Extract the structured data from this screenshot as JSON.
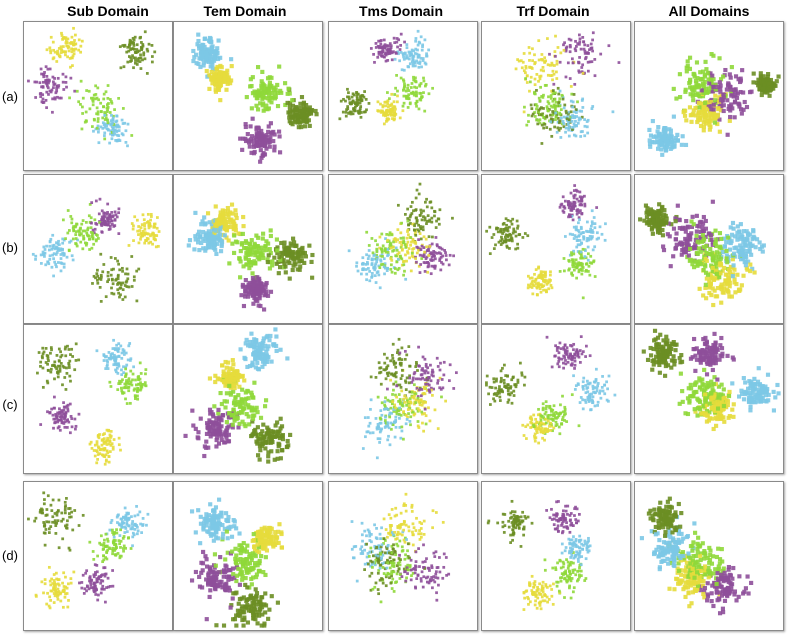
{
  "chart_data": {
    "type": "scatter",
    "description_kind": "t-SNE embedding grid",
    "columns": [
      "Sub Domain",
      "Tem Domain",
      "Tms Domain",
      "Trf Domain",
      "All Domains"
    ],
    "rows": [
      "(a)",
      "(b)",
      "(c)",
      "(d)"
    ],
    "class_colors": [
      "#e6dc3c",
      "#6b8e23",
      "#8fd83a",
      "#7cc8e6",
      "#8e4f9a"
    ],
    "clusters": [
      [
        [
          [
            0.28,
            0.18,
            0.1
          ],
          [
            0.74,
            0.2,
            0.1
          ],
          [
            0.52,
            0.58,
            0.14
          ],
          [
            0.6,
            0.72,
            0.09
          ],
          [
            0.18,
            0.44,
            0.12
          ]
        ],
        [
          [
            0.3,
            0.38,
            0.07
          ],
          [
            0.85,
            0.62,
            0.08
          ],
          [
            0.62,
            0.48,
            0.11
          ],
          [
            0.22,
            0.22,
            0.09
          ],
          [
            0.58,
            0.8,
            0.1
          ]
        ],
        [
          [
            0.4,
            0.6,
            0.07
          ],
          [
            0.18,
            0.55,
            0.08
          ],
          [
            0.55,
            0.48,
            0.1
          ],
          [
            0.58,
            0.22,
            0.09
          ],
          [
            0.38,
            0.18,
            0.08
          ]
        ],
        [
          [
            0.4,
            0.3,
            0.16
          ],
          [
            0.48,
            0.62,
            0.14
          ],
          [
            0.45,
            0.58,
            0.14
          ],
          [
            0.62,
            0.65,
            0.14
          ],
          [
            0.65,
            0.22,
            0.14
          ]
        ],
        [
          [
            0.48,
            0.62,
            0.1
          ],
          [
            0.88,
            0.42,
            0.06
          ],
          [
            0.45,
            0.42,
            0.14
          ],
          [
            0.2,
            0.8,
            0.08
          ],
          [
            0.62,
            0.5,
            0.14
          ]
        ]
      ],
      [
        [
          [
            0.82,
            0.38,
            0.09
          ],
          [
            0.62,
            0.72,
            0.13
          ],
          [
            0.4,
            0.4,
            0.12
          ],
          [
            0.22,
            0.52,
            0.11
          ],
          [
            0.55,
            0.3,
            0.08
          ]
        ],
        [
          [
            0.35,
            0.32,
            0.08
          ],
          [
            0.78,
            0.55,
            0.1
          ],
          [
            0.55,
            0.52,
            0.12
          ],
          [
            0.25,
            0.42,
            0.1
          ],
          [
            0.55,
            0.78,
            0.08
          ]
        ],
        [
          [
            0.52,
            0.48,
            0.15
          ],
          [
            0.62,
            0.3,
            0.12
          ],
          [
            0.42,
            0.52,
            0.15
          ],
          [
            0.3,
            0.62,
            0.12
          ],
          [
            0.7,
            0.55,
            0.1
          ]
        ],
        [
          [
            0.4,
            0.72,
            0.08
          ],
          [
            0.18,
            0.4,
            0.1
          ],
          [
            0.65,
            0.6,
            0.1
          ],
          [
            0.7,
            0.4,
            0.1
          ],
          [
            0.62,
            0.2,
            0.08
          ]
        ],
        [
          [
            0.58,
            0.7,
            0.14
          ],
          [
            0.15,
            0.3,
            0.08
          ],
          [
            0.5,
            0.55,
            0.14
          ],
          [
            0.72,
            0.48,
            0.13
          ],
          [
            0.38,
            0.42,
            0.14
          ]
        ]
      ],
      [
        [
          [
            0.55,
            0.82,
            0.09
          ],
          [
            0.22,
            0.25,
            0.12
          ],
          [
            0.72,
            0.4,
            0.1
          ],
          [
            0.62,
            0.22,
            0.09
          ],
          [
            0.25,
            0.62,
            0.08
          ]
        ],
        [
          [
            0.38,
            0.35,
            0.07
          ],
          [
            0.65,
            0.78,
            0.11
          ],
          [
            0.45,
            0.55,
            0.14
          ],
          [
            0.58,
            0.18,
            0.1
          ],
          [
            0.28,
            0.7,
            0.12
          ]
        ],
        [
          [
            0.58,
            0.52,
            0.15
          ],
          [
            0.45,
            0.3,
            0.14
          ],
          [
            0.48,
            0.55,
            0.15
          ],
          [
            0.38,
            0.65,
            0.14
          ],
          [
            0.65,
            0.35,
            0.14
          ]
        ],
        [
          [
            0.38,
            0.7,
            0.08
          ],
          [
            0.15,
            0.4,
            0.1
          ],
          [
            0.48,
            0.62,
            0.1
          ],
          [
            0.75,
            0.45,
            0.1
          ],
          [
            0.58,
            0.2,
            0.1
          ]
        ],
        [
          [
            0.55,
            0.55,
            0.1
          ],
          [
            0.2,
            0.2,
            0.1
          ],
          [
            0.48,
            0.48,
            0.13
          ],
          [
            0.82,
            0.45,
            0.1
          ],
          [
            0.5,
            0.2,
            0.1
          ]
        ]
      ],
      [
        [
          [
            0.22,
            0.72,
            0.1
          ],
          [
            0.22,
            0.25,
            0.14
          ],
          [
            0.6,
            0.45,
            0.1
          ],
          [
            0.7,
            0.28,
            0.1
          ],
          [
            0.5,
            0.68,
            0.1
          ]
        ],
        [
          [
            0.62,
            0.38,
            0.09
          ],
          [
            0.52,
            0.85,
            0.12
          ],
          [
            0.5,
            0.55,
            0.13
          ],
          [
            0.28,
            0.28,
            0.11
          ],
          [
            0.3,
            0.65,
            0.12
          ]
        ],
        [
          [
            0.52,
            0.3,
            0.15
          ],
          [
            0.38,
            0.55,
            0.14
          ],
          [
            0.45,
            0.55,
            0.15
          ],
          [
            0.3,
            0.45,
            0.14
          ],
          [
            0.65,
            0.6,
            0.14
          ]
        ],
        [
          [
            0.38,
            0.75,
            0.09
          ],
          [
            0.22,
            0.28,
            0.09
          ],
          [
            0.58,
            0.62,
            0.11
          ],
          [
            0.65,
            0.45,
            0.09
          ],
          [
            0.55,
            0.25,
            0.09
          ]
        ],
        [
          [
            0.4,
            0.65,
            0.11
          ],
          [
            0.2,
            0.25,
            0.1
          ],
          [
            0.45,
            0.55,
            0.14
          ],
          [
            0.25,
            0.45,
            0.12
          ],
          [
            0.6,
            0.7,
            0.12
          ]
        ]
      ]
    ]
  }
}
